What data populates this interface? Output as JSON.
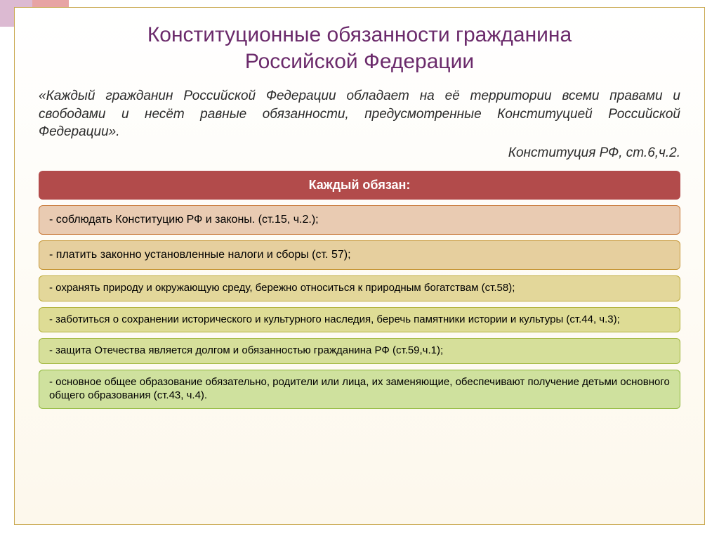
{
  "title_color": "#6b2a6b",
  "quote_color": "#2a2a2a",
  "title_line1": "Конституционные обязанности гражданина",
  "title_line2": "Российской Федерации",
  "quote": "«Каждый гражданин Российской Федерации обладает на её территории всеми правами и свободами и несёт равные обязанности, предусмотренные Конституцией Российской Федерации».",
  "citation": "Конституция РФ, ст.6,ч.2.",
  "header": {
    "text": "Каждый обязан:",
    "bg": "#b24b4b"
  },
  "rows": [
    {
      "text": "- соблюдать Конституцию РФ и законы. (ст.15, ч.2.);",
      "bg": "#e9cbb2",
      "border": "#c87a3a",
      "size": "normal"
    },
    {
      "text": "- платить законно установленные налоги и сборы (ст. 57);",
      "bg": "#e6cf9e",
      "border": "#c7983a",
      "size": "normal"
    },
    {
      "text": "- охранять природу и окружающую среду, бережно относиться к природным богатствам (ст.58);",
      "bg": "#e3d79a",
      "border": "#bdaa3a",
      "size": "small"
    },
    {
      "text": "- заботиться о сохранении исторического  и культурного наследия, беречь памятники истории и культуры (ст.44, ч.3);",
      "bg": "#dedc95",
      "border": "#b2b23a",
      "size": "small"
    },
    {
      "text": "- защита Отечества является долгом и обязанностью гражданина РФ (ст.59,ч.1);",
      "bg": "#d6df9a",
      "border": "#9fb53a",
      "size": "small"
    },
    {
      "text": "- основное общее образование обязательно, родители или лица, их заменяющие, обеспечивают получение детьми основного общего образования (ст.43, ч.4).",
      "bg": "#cfe19e",
      "border": "#8fb83a",
      "size": "small"
    }
  ]
}
